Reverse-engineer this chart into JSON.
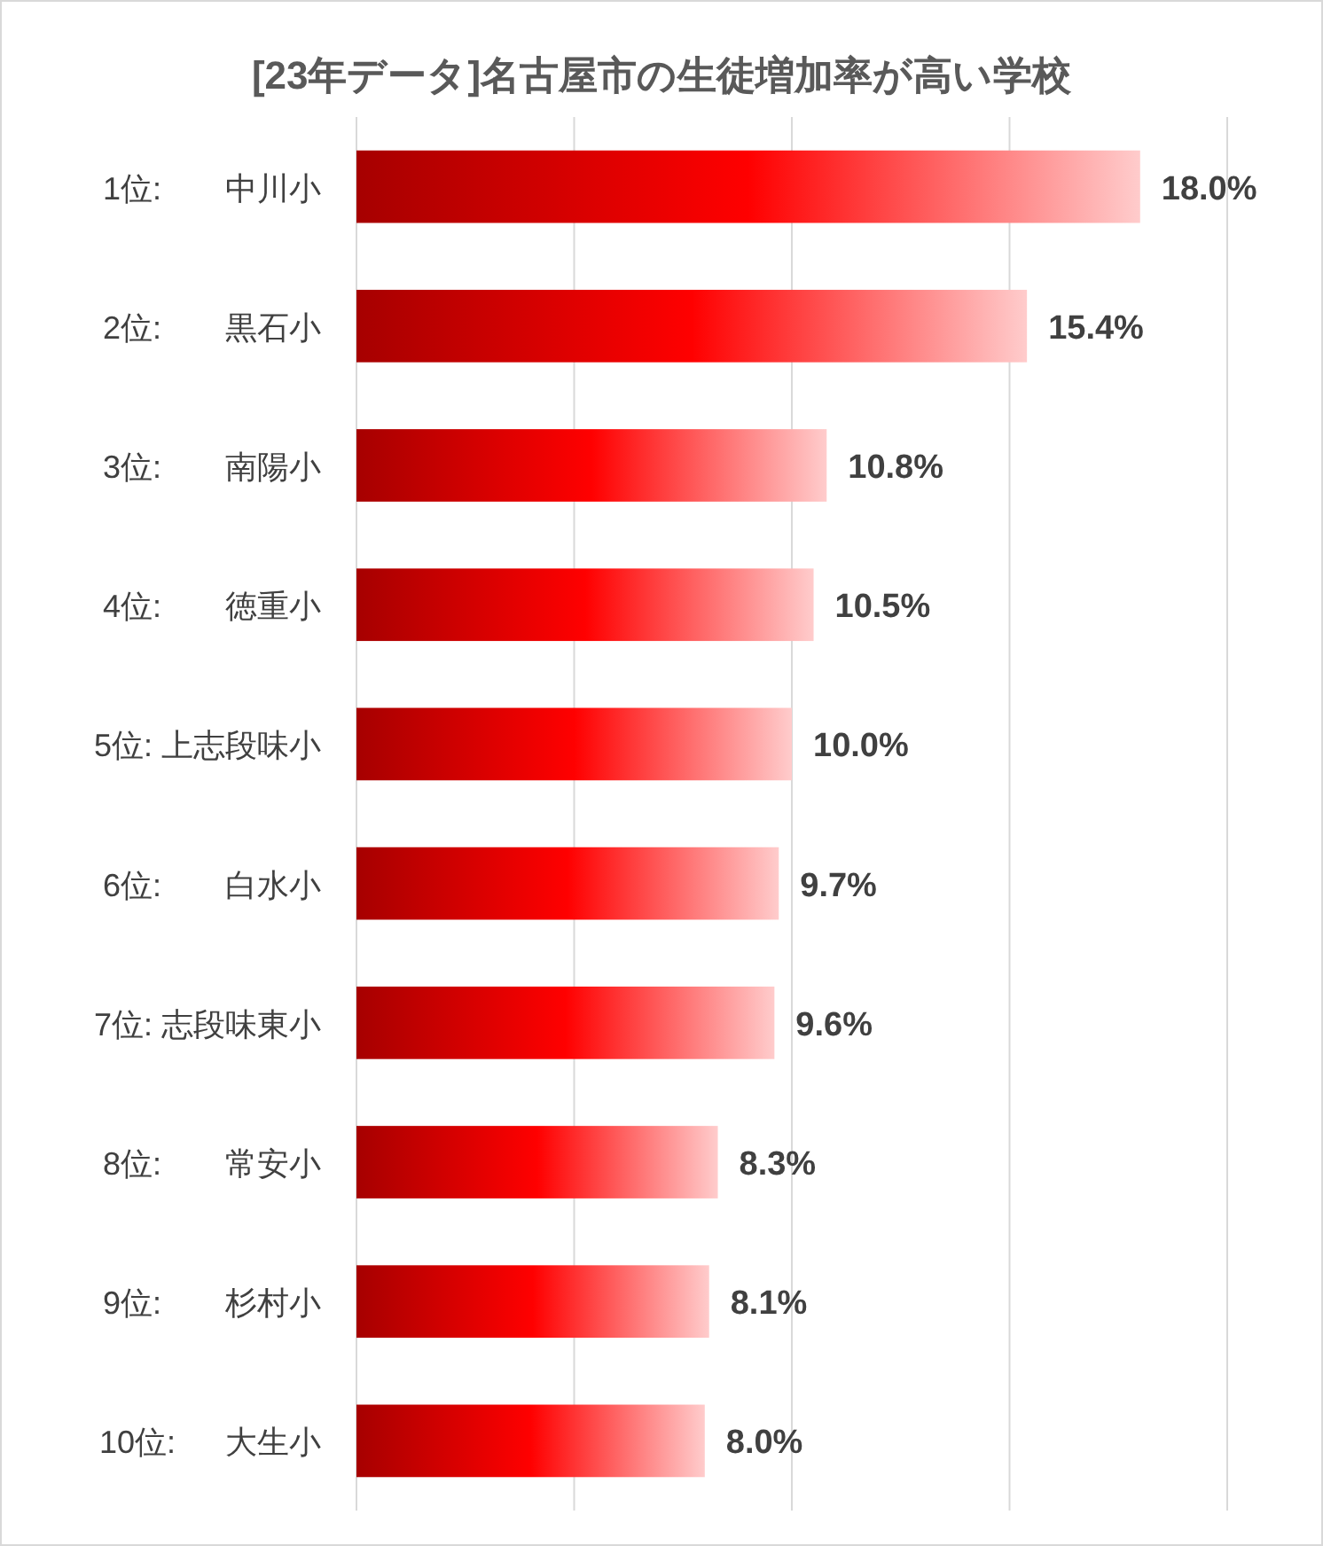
{
  "chart_data": {
    "type": "bar",
    "orientation": "horizontal",
    "title": "[23年データ]名古屋市の生徒増加率が高い学校",
    "categories": [
      "1位:　　中川小",
      "2位:　　黒石小",
      "3位:　　南陽小",
      "4位:　　徳重小",
      "5位: 上志段味小",
      "6位:　　白水小",
      "7位: 志段味東小",
      "8位:　　常安小",
      "9位:　　杉村小",
      "10位:　  大生小"
    ],
    "values": [
      18.0,
      15.4,
      10.8,
      10.5,
      10.0,
      9.7,
      9.6,
      8.3,
      8.1,
      8.0
    ],
    "value_labels": [
      "18.0%",
      "15.4%",
      "10.8%",
      "10.5%",
      "10.0%",
      "9.7%",
      "9.6%",
      "8.3%",
      "8.1%",
      "8.0%"
    ],
    "color": "#ff0000",
    "xlim": [
      0,
      20
    ],
    "xticks": [
      {
        "value": 0,
        "label": null
      },
      {
        "value": 5,
        "label": null
      },
      {
        "value": 10,
        "label": null
      },
      {
        "value": 15,
        "label": null
      },
      {
        "value": 20,
        "label": null
      }
    ],
    "grid": "x",
    "tick_labels": "y"
  }
}
